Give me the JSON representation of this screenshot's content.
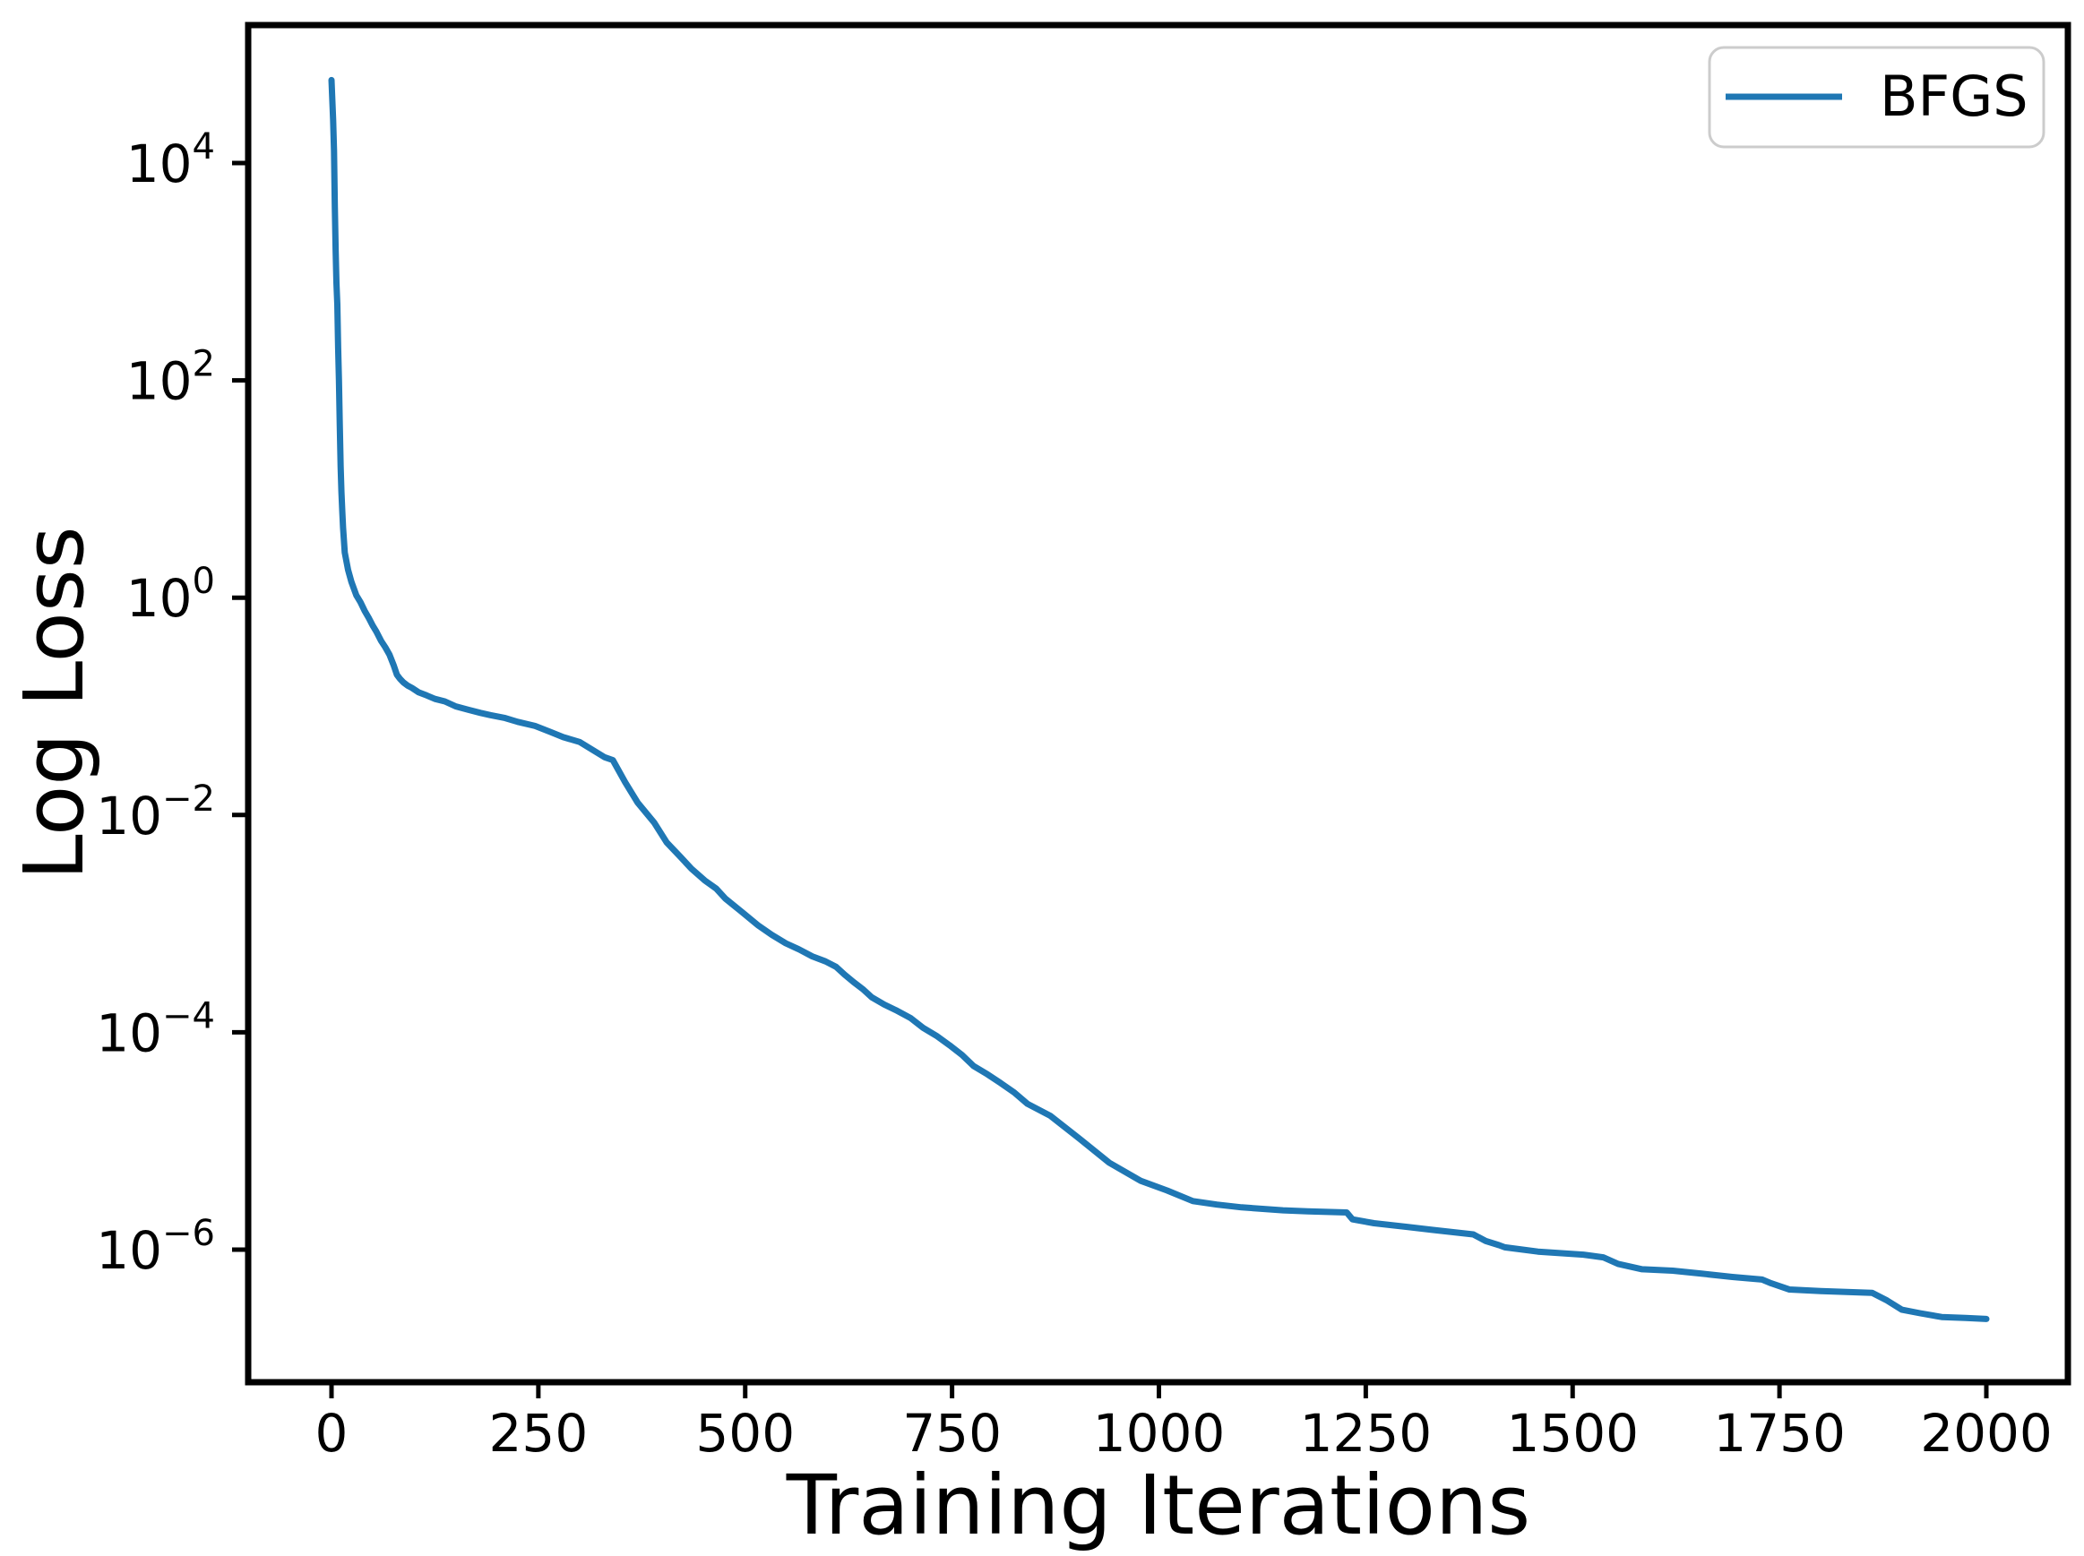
{
  "figure": {
    "background": "#ffffff",
    "axes_color": "#000000"
  },
  "chart_data": {
    "type": "line",
    "title": "",
    "xlabel": "Training Iterations",
    "ylabel": "Log Loss",
    "yscale": "log",
    "grid": false,
    "xlim": [
      -100,
      2100
    ],
    "ylim_log10": [
      -7.22,
      5.27
    ],
    "x_ticks": [
      0,
      250,
      500,
      750,
      1000,
      1250,
      1500,
      1750,
      2000
    ],
    "y_tick_base": "10",
    "y_tick_exponents": [
      4,
      2,
      0,
      -2,
      -4,
      -6
    ],
    "legend": {
      "location": "upper-right",
      "border_color": "#cccccc",
      "entries": [
        {
          "label": "BFGS",
          "color": "#1f77b4"
        }
      ]
    },
    "series": [
      {
        "name": "BFGS",
        "color": "#1f77b4",
        "points": [
          [
            0,
            58000
          ],
          [
            2,
            25000
          ],
          [
            3,
            13000
          ],
          [
            4,
            4000
          ],
          [
            5,
            1600
          ],
          [
            6,
            790
          ],
          [
            7,
            500
          ],
          [
            8,
            200
          ],
          [
            9,
            100
          ],
          [
            10,
            40
          ],
          [
            11,
            16
          ],
          [
            12,
            9.3
          ],
          [
            13,
            6.3
          ],
          [
            14,
            4.4
          ],
          [
            16,
            2.6
          ],
          [
            20,
            1.8
          ],
          [
            24,
            1.4
          ],
          [
            30,
            1.05
          ],
          [
            35,
            0.91
          ],
          [
            40,
            0.76
          ],
          [
            45,
            0.65
          ],
          [
            50,
            0.55
          ],
          [
            54,
            0.49
          ],
          [
            60,
            0.4
          ],
          [
            65,
            0.35
          ],
          [
            70,
            0.3
          ],
          [
            75,
            0.24
          ],
          [
            79,
            0.195
          ],
          [
            83,
            0.178
          ],
          [
            87,
            0.166
          ],
          [
            92,
            0.155
          ],
          [
            97,
            0.148
          ],
          [
            105,
            0.135
          ],
          [
            115,
            0.126
          ],
          [
            125,
            0.117
          ],
          [
            137,
            0.111
          ],
          [
            150,
            0.1
          ],
          [
            165,
            0.093
          ],
          [
            180,
            0.087
          ],
          [
            192,
            0.083
          ],
          [
            210,
            0.078
          ],
          [
            225,
            0.072
          ],
          [
            246,
            0.066
          ],
          [
            265,
            0.058
          ],
          [
            280,
            0.052
          ],
          [
            300,
            0.047
          ],
          [
            315,
            0.04
          ],
          [
            330,
            0.034
          ],
          [
            340,
            0.032
          ],
          [
            355,
            0.02
          ],
          [
            370,
            0.013
          ],
          [
            390,
            0.0085
          ],
          [
            405,
            0.0056
          ],
          [
            422,
            0.0041
          ],
          [
            435,
            0.0032
          ],
          [
            451,
            0.0025
          ],
          [
            465,
            0.0021
          ],
          [
            476,
            0.0017
          ],
          [
            495,
            0.0013
          ],
          [
            516,
            0.00096
          ],
          [
            532,
            0.00079
          ],
          [
            549,
            0.00066
          ],
          [
            565,
            0.00058
          ],
          [
            581,
            0.0005
          ],
          [
            597,
            0.00045
          ],
          [
            610,
            0.0004
          ],
          [
            620,
            0.00034
          ],
          [
            631,
            0.00029
          ],
          [
            642,
            0.00025
          ],
          [
            653,
            0.00021
          ],
          [
            668,
            0.00018
          ],
          [
            682,
            0.00016
          ],
          [
            700,
            0.000135
          ],
          [
            715,
            0.00011
          ],
          [
            731,
            9.3e-05
          ],
          [
            747,
            7.6e-05
          ],
          [
            762,
            6.2e-05
          ],
          [
            776,
            4.9e-05
          ],
          [
            793,
            4.1e-05
          ],
          [
            809,
            3.4e-05
          ],
          [
            825,
            2.8e-05
          ],
          [
            841,
            2.2e-05
          ],
          [
            869,
            1.7e-05
          ],
          [
            904,
            1.05e-05
          ],
          [
            940,
            6.3e-06
          ],
          [
            978,
            4.3e-06
          ],
          [
            1010,
            3.5e-06
          ],
          [
            1041,
            2.8e-06
          ],
          [
            1070,
            2.6e-06
          ],
          [
            1100,
            2.45e-06
          ],
          [
            1150,
            2.3e-06
          ],
          [
            1180,
            2.25e-06
          ],
          [
            1227,
            2.2e-06
          ],
          [
            1234,
            1.9e-06
          ],
          [
            1260,
            1.75e-06
          ],
          [
            1300,
            1.62e-06
          ],
          [
            1330,
            1.52e-06
          ],
          [
            1380,
            1.38e-06
          ],
          [
            1395,
            1.2e-06
          ],
          [
            1411,
            1.1e-06
          ],
          [
            1418,
            1.05e-06
          ],
          [
            1458,
            9.6e-07
          ],
          [
            1513,
            9e-07
          ],
          [
            1537,
            8.5e-07
          ],
          [
            1555,
            7.4e-07
          ],
          [
            1584,
            6.6e-07
          ],
          [
            1621,
            6.4e-07
          ],
          [
            1657,
            6e-07
          ],
          [
            1693,
            5.6e-07
          ],
          [
            1729,
            5.3e-07
          ],
          [
            1740,
            4.9e-07
          ],
          [
            1762,
            4.3e-07
          ],
          [
            1800,
            4.15e-07
          ],
          [
            1862,
            4e-07
          ],
          [
            1880,
            3.4e-07
          ],
          [
            1898,
            2.8e-07
          ],
          [
            1920,
            2.6e-07
          ],
          [
            1946,
            2.4e-07
          ],
          [
            1975,
            2.35e-07
          ],
          [
            2000,
            2.3e-07
          ]
        ]
      }
    ]
  }
}
